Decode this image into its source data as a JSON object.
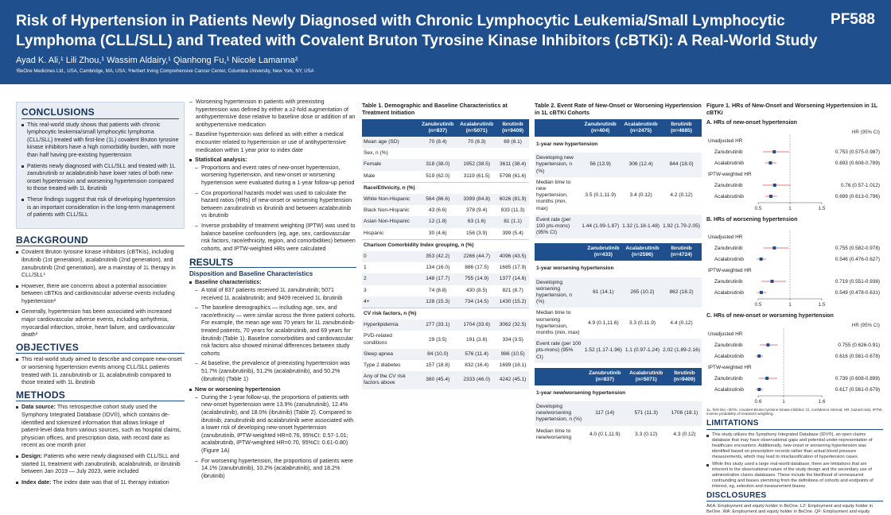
{
  "header": {
    "title": "Risk of Hypertension in Patients Newly Diagnosed with Chronic Lymphocytic Leukemia/Small Lymphocytic Lymphoma (CLL/SLL) and Treated with Covalent Bruton Tyrosine Kinase Inhibitors (cBTKi): A Real-World Study",
    "poster_id": "PF588",
    "authors": "Ayad K. Ali,¹ Lili Zhou,¹ Wassim Aldairy,¹ Qianhong Fu,¹ Nicole Lamanna²",
    "affiliations": "¹BeOne Medicines Ltd., USA, Cambridge, MA, USA; ²Herbert Irving Comprehensive Cancer Center, Columbia University, New York, NY, USA"
  },
  "conclusions": {
    "heading": "CONCLUSIONS",
    "items": [
      "This real-world study shows that patients with chronic lymphocytic leukemia/small lymphocytic lymphoma (CLL/SLL) treated with first-line (1L) covalent Bruton tyrosine kinase inhibitors have a high comorbidity burden, with more than half having pre-existing hypertension",
      "Patients newly diagnosed with CLL/SLL and treated with 1L zanubrutinib or acalabrutinib have lower rates of both new-onset hypertension and worsening hypertension compared to those treated with 1L ibrutinib",
      "These findings suggest that risk of developing hypertension is an important consideration in the long-term management of patients with CLL/SLL"
    ]
  },
  "background": {
    "heading": "BACKGROUND",
    "items": [
      "Covalent Bruton tyrosine kinase inhibitors (cBTKis), including ibrutinib (1st generation), acalabrutinib (2nd generation), and zanubrutinib (2nd generation), are a mainstay of 1L therapy in CLL/SLL¹",
      "However, there are concerns about a potential association between cBTKis and cardiovascular adverse events including hypertension²",
      "Generally, hypertension has been associated with increased major cardiovascular adverse events, including arrhythmia, myocardial infarction, stroke, heart failure, and cardiovascular death³"
    ]
  },
  "objectives": {
    "heading": "OBJECTIVES",
    "items": [
      "This real-world study aimed to describe and compare new-onset or worsening hypertension events among CLL/SLL patients treated with 1L zanubrutinib or 1L acalabrutinib compared to those treated with 1L ibrutinib"
    ]
  },
  "methods": {
    "heading": "METHODS",
    "items": [
      {
        "label": "Data source:",
        "text": " This retrospective cohort study used the Symphony Integrated Database (IDV®), which contains de-identified and tokenized information that allows linkage of patient-level data from various sources, such as hospital claims, physician offices, and prescription data, with record date as recent as one month prior"
      },
      {
        "label": "Design:",
        "text": " Patients who were newly diagnosed with CLL/SLL and started 1L treatment with zanubrutinib, acalabrutinib, or ibrutinib between Jan 2019 — July 2023, were included"
      },
      {
        "label": "Index date:",
        "text": " The index date was that of 1L therapy initiation"
      }
    ]
  },
  "col2": {
    "intro_items": [
      "Worsening hypertension in patients with preexisting hypertension was defined by either a ≥2-fold augmentation of antihypertensive dose relative to baseline dose or addition of an antihypertensive medication",
      "Baseline hypertension was defined as with either a medical encounter related to hypertension or use of antihypertensive medication within 1 year prior to index date"
    ],
    "stat_label": "Statistical analysis:",
    "stat_items": [
      "Proportions and event rates of new-onset hypertension, worsening hypertension, and new-onset or worsening hypertension were evaluated during a 1-year follow-up period",
      "Cox proportional hazards model was used to calculate the hazard ratios (HRs) of new-onset or worsening hypertension between zanubrutinib vs ibrutinib and between acalabrutinib vs ibrutinib",
      "Inverse probability of treatment weighting (IPTW) was used to balance baseline confounders (eg, age, sex, cardiovascular risk factors, race/ethnicity, region, and comorbidities) between cohorts, and IPTW-weighted HRs were calculated"
    ],
    "results_heading": "RESULTS",
    "disposition_heading": "Disposition and Baseline Characteristics",
    "baseline_label": "Baseline characteristics:",
    "baseline_items": [
      "A total of 837 patients received 1L zanubrutinib; 5071 received 1L acalabrutinib; and 9409 received 1L ibrutinib",
      "The baseline demographics — including age, sex, and race/ethnicity — were similar across the three patient cohorts. For example, the mean age was 70 years for 1L zanubrutinib-treated patients, 70 years for acalabrutinib, and 69 years for ibrutinib (Table 1). Baseline comorbidities and cardiovascular risk factors also showed minimal differences between study cohorts",
      "At baseline, the prevalence of preexisting hypertension was 51.7% (zanubrutinib), 51.2% (acalabrutinib), and 50.2% (ibrutinib) (Table 1)"
    ],
    "new_worse_label": "New or worsening hypertension",
    "new_worse_items": [
      "During the 1-year follow-up, the proportions of patients with new-onset hypertension were 13.9% (zanubrutinib), 12.4% (acalabrutinib), and 18.0% (ibrutinib) (Table 2). Compared to ibrutinib, zanubrutinib and acalabrutinib were associated with a lower risk of developing new-onset hypertension (zanubrutinib, IPTW-weighted HR=0.76, 95%CI: 0.57-1.01; acalabrutinib, IPTW-weighted HR=0.70, 95%CI: 0.61-0.80) (Figure 1A)",
      "For worsening hypertension, the proportions of patients were 14.1% (zanubrutinib), 10.2% (acalabrutinib), and 18.2% (ibrutinib)"
    ]
  },
  "table1": {
    "caption": "Table 1. Demographic and Baseline Characteristics at Treatment Initiation",
    "headers": [
      "",
      "Zanubrutinib (n=837)",
      "Acalabrutinib (n=5071)",
      "Ibrutinib (n=9409)"
    ],
    "rows": [
      {
        "label": "Mean age (SD)",
        "v": [
          "70 (8.4)",
          "70 (8.3)",
          "69 (8.1)"
        ],
        "type": "alt"
      },
      {
        "label": "Sex, n (%)",
        "v": [
          "",
          "",
          ""
        ],
        "type": "sub"
      },
      {
        "label": "Female",
        "v": [
          "318 (38.0)",
          "1952 (38.5)",
          "3611 (38.4)"
        ],
        "type": "alt"
      },
      {
        "label": "Male",
        "v": [
          "519 (62.0)",
          "3119 (61.5)",
          "5798 (61.6)"
        ],
        "type": "plain"
      },
      {
        "label": "Race/Ethnicity, n (%)",
        "v": [
          "",
          "",
          ""
        ],
        "type": "grp"
      },
      {
        "label": "White Non-Hispanic",
        "v": [
          "564 (86.6)",
          "3399 (84.8)",
          "6026 (81.9)"
        ],
        "type": "alt"
      },
      {
        "label": "Black Non-Hispanic",
        "v": [
          "43 (6.6)",
          "378 (9.4)",
          "833 (11.3)"
        ],
        "type": "plain"
      },
      {
        "label": "Asian Non-Hispanic",
        "v": [
          "12 (1.8)",
          "63 (1.6)",
          "81 (1.1)"
        ],
        "type": "alt"
      },
      {
        "label": "Hispanic",
        "v": [
          "30 (4.6)",
          "156 (3.9)",
          "399 (5.4)"
        ],
        "type": "plain"
      },
      {
        "label": "Charlson Comorbidity Index grouping, n (%)",
        "v": [
          "",
          "",
          ""
        ],
        "type": "grp"
      },
      {
        "label": "0",
        "v": [
          "353 (42.2)",
          "2266 (44.7)",
          "4096 (43.5)"
        ],
        "type": "alt"
      },
      {
        "label": "1",
        "v": [
          "134 (16.0)",
          "886 (17.5)",
          "1685 (17.9)"
        ],
        "type": "plain"
      },
      {
        "label": "2",
        "v": [
          "148 (17.7)",
          "755 (14.9)",
          "1377 (14.6)"
        ],
        "type": "alt"
      },
      {
        "label": "3",
        "v": [
          "74 (8.8)",
          "430 (8.5)",
          "821 (8.7)"
        ],
        "type": "plain"
      },
      {
        "label": "4+",
        "v": [
          "128 (15.3)",
          "734 (14.5)",
          "1430 (15.2)"
        ],
        "type": "alt"
      },
      {
        "label": "CV risk factors, n (%)",
        "v": [
          "",
          "",
          ""
        ],
        "type": "grp"
      },
      {
        "label": "Hyperlipidemia",
        "v": [
          "277 (33.1)",
          "1704 (33.6)",
          "3062 (32.5)"
        ],
        "type": "alt"
      },
      {
        "label": "PVD-related conditions",
        "v": [
          "29 (3.5)",
          "191 (3.8)",
          "334 (3.5)"
        ],
        "type": "plain"
      },
      {
        "label": "Sleep apnea",
        "v": [
          "84 (10.0)",
          "576 (11.4)",
          "986 (10.5)"
        ],
        "type": "alt"
      },
      {
        "label": "Type 2 diabetes",
        "v": [
          "157 (18.8)",
          "832 (16.4)",
          "1699 (18.1)"
        ],
        "type": "plain"
      },
      {
        "label": "Any of the CV risk factors above",
        "v": [
          "380 (45.4)",
          "2333 (46.0)",
          "4242 (45.1)"
        ],
        "type": "alt"
      }
    ]
  },
  "table2": {
    "caption": "Table 2. Event Rate of New-Onset or Worsening Hypertension in 1L cBTKi Cohorts",
    "blocks": [
      {
        "headers": [
          "",
          "Zanubrutinib (n=404)",
          "Acalabrutinib (n=2475)",
          "Ibrutinib (n=4685)"
        ],
        "group": "1-year new hypertension",
        "rows": [
          {
            "label": "Developing new hypertension, n (%)",
            "v": [
              "56 (13.9)",
              "306 (12.4)",
              "844 (18.0)"
            ]
          },
          {
            "label": "Median time to new hypertension, months (min, max)",
            "v": [
              "3.5 (0.1,11.9)",
              "3.4 (0.12)",
              "4.2 (0.12)"
            ]
          },
          {
            "label": "Event rate (per 100 pts-mons) (95% CI)",
            "v": [
              "1.44 (1.09-1.87)",
              "1.32 (1.18-1.48)",
              "1.92 (1.79-2.05)"
            ]
          }
        ]
      },
      {
        "headers": [
          "",
          "Zanubrutinib (n=433)",
          "Acalabrutinib (n=2596)",
          "Ibrutinib (n=4724)"
        ],
        "group": "1-year worsening hypertension",
        "rows": [
          {
            "label": "Developing worsening hypertension, n (%)",
            "v": [
              "61 (14.1)",
              "265 (10.2)",
              "862 (18.2)"
            ]
          },
          {
            "label": "Median time to worsening hypertension, months (min, max)",
            "v": [
              "4.9 (0.1,11.6)",
              "3.3 (0.11.9)",
              "4.4 (0.12)"
            ]
          },
          {
            "label": "Event rate (per 100 pts-mons) (95% CI)",
            "v": [
              "1.52 (1.17-1.96)",
              "1.1 (0.97-1.24)",
              "2.02 (1.89-2.16)"
            ]
          }
        ]
      },
      {
        "headers": [
          "",
          "Zanubrutinib (n=837)",
          "Acalabrutinib (n=5071)",
          "Ibrutinib (n=9409)"
        ],
        "group": "1-year new/worsening hypertension",
        "rows": [
          {
            "label": "Developing new/worsening hypertension, n (%)",
            "v": [
              "117 (14)",
              "571 (11.3)",
              "1706 (18.1)"
            ]
          },
          {
            "label": "Median time to new/worsening",
            "v": [
              "4.0 (0.1,11.9)",
              "3.3 (0.12)",
              "4.3 (0.12)"
            ]
          }
        ]
      }
    ]
  },
  "figure1": {
    "caption": "Figure 1. HRs of New-Onset and Worsening Hypertension in 1L cBTKi",
    "hr_label": "HR (95% CI)",
    "panels": [
      {
        "title": "A. HRs of new-onset hypertension",
        "show_hr_label": true,
        "ticks": [
          0.5,
          1,
          1.5
        ],
        "range": [
          0.5,
          1.5
        ],
        "groups": [
          {
            "name": "Unadjusted HR",
            "rows": [
              {
                "label": "Zanubrutinib",
                "hr": 0.753,
                "lo": 0.575,
                "hi": 0.987,
                "text": "0.753 (0.575-0.987)"
              },
              {
                "label": "Acalabrutinib",
                "hr": 0.693,
                "lo": 0.608,
                "hi": 0.789,
                "text": "0.693 (0.608-0.789)"
              }
            ]
          },
          {
            "name": "IPTW-weighted HR",
            "rows": [
              {
                "label": "Zanubrutinib",
                "hr": 0.76,
                "lo": 0.57,
                "hi": 1.012,
                "text": "0.76 (0.57-1.012)"
              },
              {
                "label": "Acalabrutinib",
                "hr": 0.699,
                "lo": 0.613,
                "hi": 0.796,
                "text": "0.699 (0.613-0.796)"
              }
            ]
          }
        ]
      },
      {
        "title": "B. HRs of worsening hypertension",
        "show_hr_label": false,
        "ticks": [
          0.5,
          1,
          1.5
        ],
        "range": [
          0.5,
          1.5
        ],
        "groups": [
          {
            "name": "Unadjusted HR",
            "rows": [
              {
                "label": "Zanubrutinib",
                "hr": 0.755,
                "lo": 0.582,
                "hi": 0.978,
                "text": "0.755 (0.582-0.978)"
              },
              {
                "label": "Acalabrutinib",
                "hr": 0.546,
                "lo": 0.476,
                "hi": 0.627,
                "text": "0.546 (0.476-0.627)"
              }
            ]
          },
          {
            "name": "IPTW-weighted HR",
            "rows": [
              {
                "label": "Zanubrutinib",
                "hr": 0.719,
                "lo": 0.551,
                "hi": 0.938,
                "text": "0.719 (0.551-0.938)"
              },
              {
                "label": "Acalabrutinib",
                "hr": 0.549,
                "lo": 0.478,
                "hi": 0.631,
                "text": "0.549 (0.478-0.631)"
              }
            ]
          }
        ]
      },
      {
        "title": "C. HRs of new-onset or worsening hypertension",
        "show_hr_label": true,
        "ticks": [
          0.6,
          1,
          1.6
        ],
        "range": [
          0.6,
          1.6
        ],
        "groups": [
          {
            "name": "Unadjusted HR",
            "rows": [
              {
                "label": "Zanubrutinib",
                "hr": 0.755,
                "lo": 0.626,
                "hi": 0.91,
                "text": "0.755 (0.626-0.91)"
              },
              {
                "label": "Acalabrutinib",
                "hr": 0.616,
                "lo": 0.561,
                "hi": 0.678,
                "text": "0.616 (0.561-0.678)"
              }
            ]
          },
          {
            "name": "IPTW-weighted HR",
            "rows": [
              {
                "label": "Zanubrutinib",
                "hr": 0.739,
                "lo": 0.608,
                "hi": 0.899,
                "text": "0.739 (0.608-0.899)"
              },
              {
                "label": "Acalabrutinib",
                "hr": 0.617,
                "lo": 0.561,
                "hi": 0.679,
                "text": "0.617 (0.561-0.679)"
              }
            ]
          }
        ]
      }
    ],
    "footnote": "1L, first-line; cBTKi, covalent Bruton tyrosine kinase inhibitor; CI, confidence interval; HR, hazard ratio; IPTW, inverse probability of treatment weighting."
  },
  "limitations": {
    "heading": "LIMITATIONS",
    "items": [
      "This study utilizes the Symphony Integrated Database (IDV®), an open claims database that may have observational gaps and potential under-representation of healthcare encounters. Additionally, new-onset or worsening hypertension was identified based on prescription records rather than actual blood pressure measurements, which may lead to misclassification of hypertension cases",
      "While this study used a large real-world database, there are limitations that are inherent to the observational nature of the study design and the secondary use of administrative claims databases. These include the likelihood of unmeasured confounding and biases stemming from the definitions of cohorts and endpoints of interest, eg, selection and measurement biases"
    ]
  },
  "disclosures": {
    "heading": "DISCLOSURES",
    "text": "AKA: Employment and equity holder in BeOne. LZ: Employment and equity holder in BeOne. WA: Employment and equity holder in BeOne. QF: Employment and equity"
  },
  "colors": {
    "brand": "#1f4f8c",
    "marker": "#1f4f8c",
    "ci_line": "#e87a7a",
    "ref_line": "#888888"
  }
}
